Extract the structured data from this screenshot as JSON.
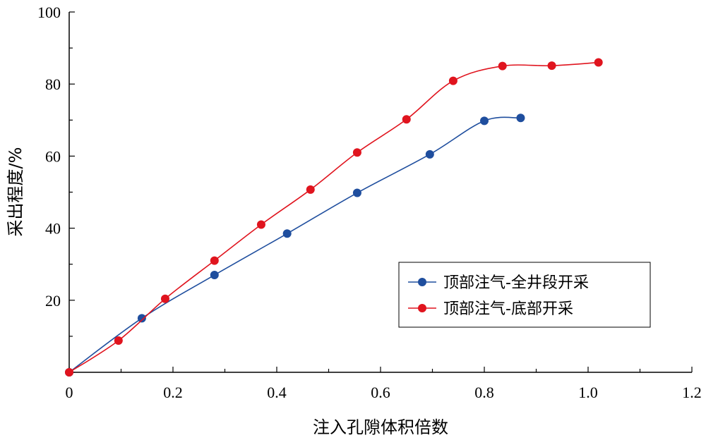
{
  "chart_data": {
    "type": "line",
    "xlabel": "注入孔隙体积倍数",
    "ylabel": "采出程度/%",
    "xlim": [
      0,
      1.2
    ],
    "ylim": [
      0,
      100
    ],
    "x_ticks": [
      "0",
      "0.2",
      "0.4",
      "0.6",
      "0.8",
      "1.0",
      "1.2"
    ],
    "y_ticks": [
      "20",
      "40",
      "60",
      "80",
      "100"
    ],
    "legend_placement": "right",
    "series": [
      {
        "name": "顶部注气-全井段开采",
        "color": "#1f4e9e",
        "x": [
          0.0,
          0.14,
          0.28,
          0.42,
          0.555,
          0.695,
          0.8,
          0.87
        ],
        "y": [
          0.0,
          15.0,
          27.0,
          38.5,
          49.8,
          60.5,
          69.8,
          70.6
        ]
      },
      {
        "name": "顶部注气-底部开采",
        "color": "#e0141e",
        "x": [
          0.0,
          0.095,
          0.185,
          0.28,
          0.37,
          0.465,
          0.555,
          0.65,
          0.74,
          0.835,
          0.93,
          1.02
        ],
        "y": [
          0.0,
          8.8,
          20.4,
          31.0,
          41.0,
          50.7,
          61.0,
          70.2,
          80.9,
          85.0,
          85.1,
          86.0
        ]
      }
    ]
  }
}
